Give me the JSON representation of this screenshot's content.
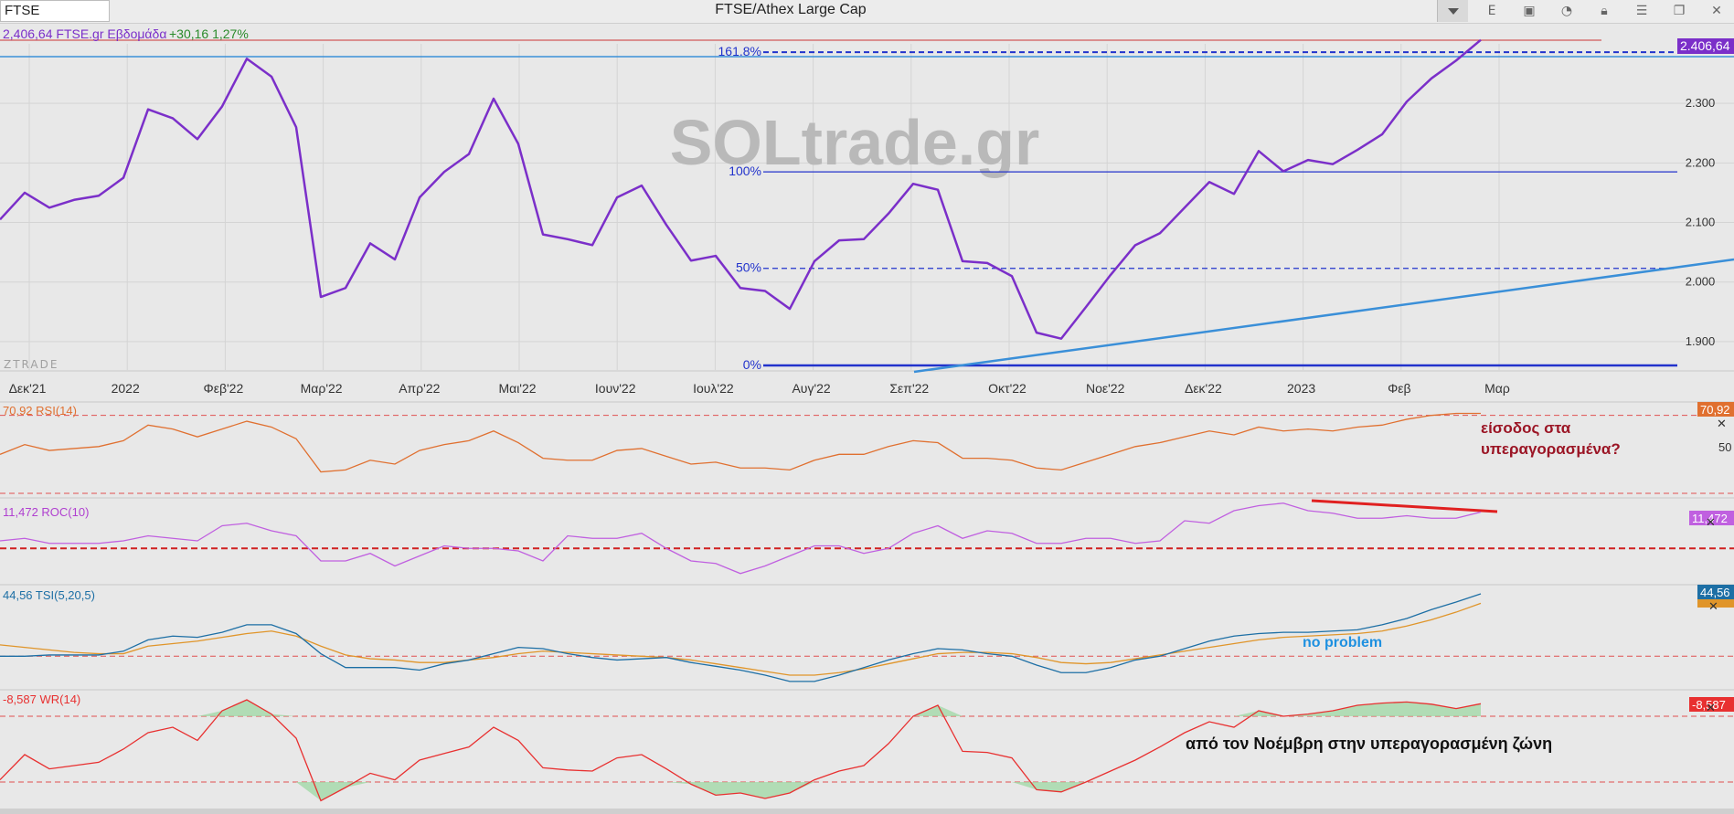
{
  "window": {
    "symbol": "FTSE",
    "title": "FTSE/Athex Large Cap",
    "toolbar_icons": [
      "e-letter-icon",
      "save-icon",
      "chat-icon",
      "lock-icon",
      "menu-icon",
      "window-restore-icon",
      "close-icon"
    ],
    "toolbar_e": "E"
  },
  "header": {
    "price_label": "2,406,64 FTSE.gr Εβδομάδα",
    "change_label": "+30,16 1,27%"
  },
  "watermark": "SOLtrade.gr",
  "source_mark": "ZTRADE",
  "colors": {
    "price": "#7b2fc9",
    "rsi": "#e07030",
    "roc": "#c060e0",
    "tsi": "#1d6fa5",
    "tsi_signal": "#e0952a",
    "wr": "#e83030",
    "fib": "#2233cc",
    "trend": "#3a8fd8"
  },
  "fib_levels": [
    {
      "label": "161.8%",
      "value": 2386
    },
    {
      "label": "100%",
      "value": 2185
    },
    {
      "label": "50%",
      "value": 2023
    },
    {
      "label": "0%",
      "value": 1860
    }
  ],
  "last_price_badge": "2.406,64",
  "annotations": {
    "rsi_note_line1": "είσοδος στα",
    "rsi_note_line2": "υπεραγορασμένα?",
    "tsi_note": "no problem",
    "wr_note": "από τον Νοέμβρη στην υπεραγορασμένη ζώνη"
  },
  "chart_data": [
    {
      "type": "line",
      "title": "FTSE/Athex Large Cap",
      "x_tick_labels": [
        "Δεκ'21",
        "2022",
        "Φεβ'22",
        "Μαρ'22",
        "Απρ'22",
        "Μαι'22",
        "Ιουν'22",
        "Ιουλ'22",
        "Αυγ'22",
        "Σεπ'22",
        "Οκτ'22",
        "Νοε'22",
        "Δεκ'22",
        "2023",
        "Φεβ",
        "Μαρ"
      ],
      "y_tick_labels": [
        "2.300",
        "2.200",
        "2.100",
        "2.000",
        "1.900"
      ],
      "ylim": [
        1860,
        2400
      ],
      "series": [
        {
          "name": "FTSE.gr",
          "values": [
            2105,
            2150,
            2125,
            2138,
            2145,
            2175,
            2290,
            2275,
            2240,
            2295,
            2375,
            2345,
            2260,
            1975,
            1990,
            2065,
            2038,
            2142,
            2185,
            2215,
            2308,
            2232,
            2080,
            2072,
            2062,
            2142,
            2162,
            2096,
            2036,
            2044,
            1990,
            1985,
            1955,
            2035,
            2070,
            2072,
            2115,
            2165,
            2155,
            2035,
            2032,
            2010,
            1915,
            1905,
            1958,
            2012,
            2062,
            2082,
            2125,
            2168,
            2148,
            2220,
            2186,
            2205,
            2198,
            2222,
            2248,
            2303,
            2342,
            2372,
            2406.64
          ]
        }
      ]
    },
    {
      "type": "line",
      "title": "RSI(14)",
      "value_label": "70,92 RSI(14)",
      "badge": "70,92",
      "axis_label": "50",
      "ylim": [
        0,
        100
      ],
      "series": [
        {
          "name": "RSI(14)",
          "values": [
            50,
            55,
            52,
            53,
            54,
            57,
            65,
            63,
            59,
            63,
            67,
            64,
            58,
            41,
            42,
            47,
            45,
            52,
            55,
            57,
            62,
            56,
            48,
            47,
            47,
            52,
            53,
            49,
            45,
            46,
            43,
            43,
            42,
            47,
            50,
            50,
            54,
            57,
            56,
            48,
            48,
            47,
            43,
            42,
            46,
            50,
            54,
            56,
            59,
            62,
            60,
            64,
            62,
            63,
            62,
            64,
            65,
            68,
            70,
            71,
            71
          ]
        }
      ]
    },
    {
      "type": "line",
      "title": "ROC(10)",
      "value_label": "11,472 ROC(10)",
      "badge": "11,472",
      "series": [
        {
          "name": "ROC(10)",
          "values": [
            0,
            1,
            -1,
            -1,
            -1,
            0,
            2,
            1,
            0,
            6,
            7,
            4,
            2,
            -8,
            -8,
            -5,
            -10,
            -6,
            -2,
            -3,
            -3,
            -4,
            -8,
            2,
            1,
            1,
            3,
            -3,
            -8,
            -9,
            -13,
            -10,
            -6,
            -2,
            -2,
            -5,
            -3,
            3,
            6,
            1,
            4,
            3,
            -1,
            -1,
            1,
            1,
            -1,
            0,
            8,
            7,
            12,
            14,
            15,
            12,
            11,
            9,
            9,
            10,
            9,
            9,
            11.47
          ]
        }
      ]
    },
    {
      "type": "line",
      "title": "TSI(5,20,5)",
      "value_label": "44,56 TSI(5,20,5)",
      "badge": "44,56",
      "series": [
        {
          "name": "TSI(5,20,5)",
          "values": [
            -5,
            -5,
            -4,
            -4,
            -4,
            -1,
            8,
            11,
            10,
            14,
            20,
            20,
            13,
            -3,
            -14,
            -14,
            -14,
            -16,
            -11,
            -8,
            -3,
            2,
            1,
            -3,
            -6,
            -8,
            -7,
            -6,
            -10,
            -13,
            -16,
            -20,
            -25,
            -25,
            -20,
            -14,
            -8,
            -3,
            1,
            0,
            -3,
            -5,
            -12,
            -18,
            -18,
            -14,
            -8,
            -5,
            1,
            7,
            11,
            13,
            14,
            14,
            15,
            16,
            20,
            25,
            32,
            38,
            44.56
          ]
        },
        {
          "name": "signal",
          "values": [
            4,
            2,
            0,
            -2,
            -3,
            -3,
            3,
            5,
            7,
            10,
            13,
            15,
            11,
            3,
            -4,
            -7,
            -8,
            -10,
            -10,
            -8,
            -6,
            -3,
            -1,
            -2,
            -3,
            -4,
            -5,
            -6,
            -8,
            -11,
            -14,
            -17,
            -20,
            -20,
            -18,
            -15,
            -11,
            -7,
            -3,
            -2,
            -2,
            -3,
            -6,
            -10,
            -11,
            -10,
            -7,
            -4,
            -1,
            2,
            5,
            8,
            10,
            11,
            12,
            13,
            15,
            19,
            24,
            30,
            37
          ]
        }
      ]
    },
    {
      "type": "line",
      "title": "WR(14)",
      "value_label": "-8,587 WR(14)",
      "badge": "-8,587",
      "ylim": [
        -100,
        0
      ],
      "series": [
        {
          "name": "WR(14)",
          "values": [
            -78,
            -55,
            -68,
            -65,
            -62,
            -50,
            -35,
            -30,
            -42,
            -15,
            -5,
            -18,
            -40,
            -97,
            -85,
            -72,
            -78,
            -60,
            -54,
            -48,
            -30,
            -42,
            -67,
            -69,
            -70,
            -58,
            -55,
            -68,
            -82,
            -92,
            -90,
            -95,
            -90,
            -78,
            -70,
            -65,
            -45,
            -20,
            -10,
            -52,
            -53,
            -58,
            -87,
            -89,
            -80,
            -70,
            -60,
            -48,
            -35,
            -25,
            -30,
            -15,
            -20,
            -18,
            -15,
            -10,
            -8,
            -7,
            -9,
            -13,
            -8.587
          ]
        }
      ]
    }
  ]
}
